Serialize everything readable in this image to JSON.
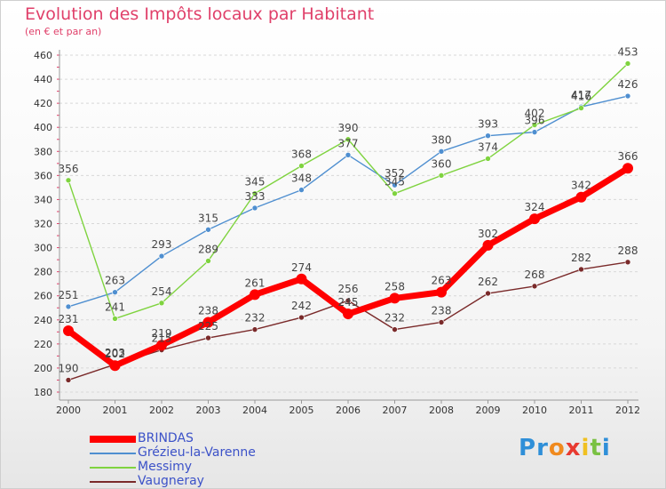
{
  "chart_data": {
    "type": "line",
    "title": "Evolution des Impôts locaux par Habitant",
    "subtitle": "(en € et par an)",
    "x": [
      "2000",
      "2001",
      "2002",
      "2003",
      "2004",
      "2005",
      "2006",
      "2007",
      "2008",
      "2009",
      "2010",
      "2011",
      "2012"
    ],
    "ylim": [
      180,
      460
    ],
    "yticks": [
      180,
      200,
      220,
      240,
      260,
      280,
      300,
      320,
      340,
      360,
      380,
      400,
      420,
      440,
      460
    ],
    "grid": "horizontal-dashed",
    "legend_position": "bottom-left",
    "series": [
      {
        "name": "BRINDAS",
        "color": "#ff0000",
        "values": [
          231,
          202,
          219,
          238,
          261,
          274,
          245,
          258,
          263,
          302,
          324,
          342,
          366
        ]
      },
      {
        "name": "Grézieu-la-Varenne",
        "color": "#4f8fd0",
        "values": [
          251,
          263,
          293,
          315,
          333,
          348,
          377,
          352,
          380,
          393,
          396,
          417,
          426
        ]
      },
      {
        "name": "Messimy",
        "color": "#7fd33f",
        "values": [
          356,
          241,
          254,
          289,
          345,
          368,
          390,
          345,
          360,
          374,
          402,
          416,
          453
        ]
      },
      {
        "name": "Vaugneray",
        "color": "#7a2a2a",
        "values": [
          190,
          203,
          215,
          225,
          232,
          242,
          256,
          232,
          238,
          262,
          268,
          282,
          288
        ]
      }
    ]
  },
  "logo": {
    "letters": [
      "P",
      "r",
      "o",
      "x",
      "i",
      "t",
      "i"
    ],
    "colors": [
      "#2f8fd8",
      "#2f8fd8",
      "#f08a1e",
      "#e83a30",
      "#f0c020",
      "#7ac143",
      "#2f8fd8"
    ]
  }
}
